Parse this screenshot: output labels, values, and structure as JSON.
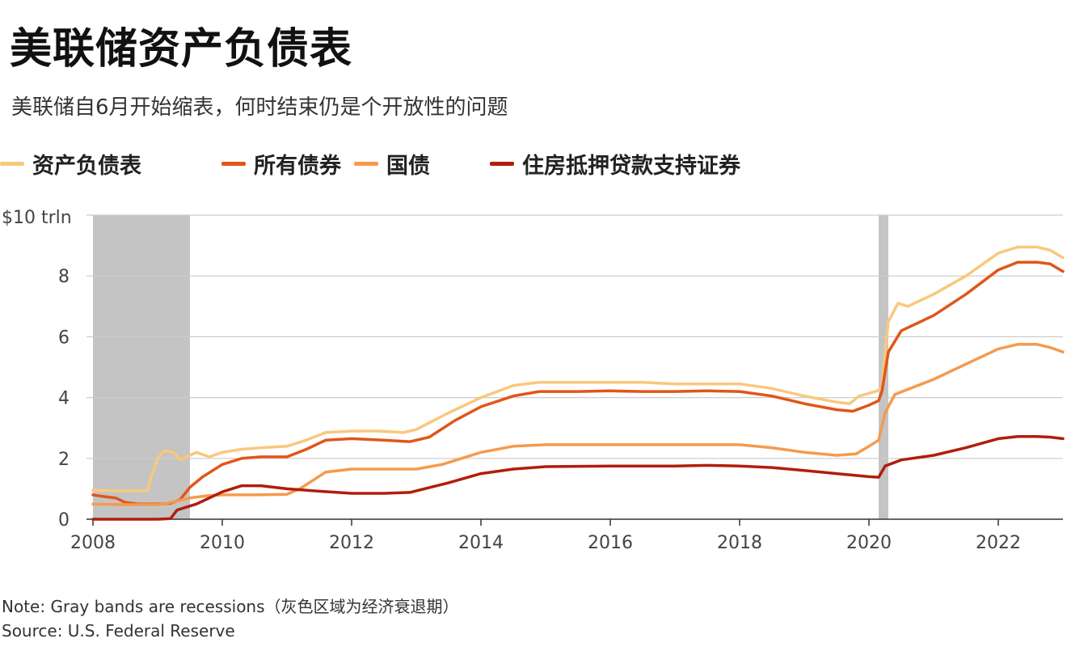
{
  "header": {
    "title": "美联储资产负债表",
    "subtitle": "美联储自6月开始缩表，何时结束仍是个开放性的问题"
  },
  "footer": {
    "note": "Note: Gray bands are recessions（灰色区域为经济衰退期）",
    "source": "Source: U.S. Federal Reserve"
  },
  "colors": {
    "balance_sheet": "#f9c87d",
    "all_securities": "#e0561a",
    "treasuries": "#f59a4e",
    "mbs": "#b01e0b",
    "recession": "#c4c4c4",
    "grid": "#cccccc"
  },
  "chart_data": {
    "type": "line",
    "ylabel_top": "$10 trln",
    "ylim": [
      0,
      10
    ],
    "xlim": [
      2008.0,
      2023.0
    ],
    "y_ticks": [
      "0",
      "2",
      "4",
      "6",
      "8"
    ],
    "x_ticks": [
      "2008",
      "2010",
      "2012",
      "2014",
      "2016",
      "2018",
      "2020",
      "2022"
    ],
    "grid": true,
    "legend_position": "top",
    "recessions": [
      [
        2008.0,
        2009.5
      ],
      [
        2020.15,
        2020.3
      ]
    ],
    "series": [
      {
        "name": "资产负债表",
        "color_key": "balance_sheet",
        "points": [
          [
            2008.0,
            0.95
          ],
          [
            2008.4,
            0.93
          ],
          [
            2008.7,
            0.93
          ],
          [
            2008.85,
            0.95
          ],
          [
            2008.9,
            1.4
          ],
          [
            2009.0,
            2.0
          ],
          [
            2009.1,
            2.25
          ],
          [
            2009.25,
            2.2
          ],
          [
            2009.35,
            1.95
          ],
          [
            2009.5,
            2.1
          ],
          [
            2009.6,
            2.2
          ],
          [
            2009.8,
            2.05
          ],
          [
            2010.0,
            2.2
          ],
          [
            2010.3,
            2.3
          ],
          [
            2010.6,
            2.35
          ],
          [
            2011.0,
            2.4
          ],
          [
            2011.3,
            2.6
          ],
          [
            2011.6,
            2.85
          ],
          [
            2012.0,
            2.9
          ],
          [
            2012.4,
            2.9
          ],
          [
            2012.8,
            2.85
          ],
          [
            2013.0,
            2.95
          ],
          [
            2013.5,
            3.5
          ],
          [
            2014.0,
            4.0
          ],
          [
            2014.5,
            4.4
          ],
          [
            2014.9,
            4.5
          ],
          [
            2015.5,
            4.5
          ],
          [
            2016.0,
            4.5
          ],
          [
            2016.5,
            4.5
          ],
          [
            2017.0,
            4.45
          ],
          [
            2017.5,
            4.45
          ],
          [
            2018.0,
            4.45
          ],
          [
            2018.5,
            4.3
          ],
          [
            2019.0,
            4.05
          ],
          [
            2019.5,
            3.85
          ],
          [
            2019.7,
            3.8
          ],
          [
            2019.85,
            4.05
          ],
          [
            2020.1,
            4.2
          ],
          [
            2020.2,
            4.3
          ],
          [
            2020.25,
            5.5
          ],
          [
            2020.3,
            6.5
          ],
          [
            2020.45,
            7.1
          ],
          [
            2020.6,
            7.0
          ],
          [
            2021.0,
            7.4
          ],
          [
            2021.5,
            8.0
          ],
          [
            2022.0,
            8.75
          ],
          [
            2022.3,
            8.95
          ],
          [
            2022.6,
            8.95
          ],
          [
            2022.8,
            8.85
          ],
          [
            2023.0,
            8.6
          ]
        ]
      },
      {
        "name": "所有债券",
        "color_key": "all_securities",
        "points": [
          [
            2008.0,
            0.8
          ],
          [
            2008.15,
            0.75
          ],
          [
            2008.35,
            0.7
          ],
          [
            2008.5,
            0.55
          ],
          [
            2008.7,
            0.5
          ],
          [
            2009.0,
            0.5
          ],
          [
            2009.2,
            0.52
          ],
          [
            2009.35,
            0.65
          ],
          [
            2009.5,
            1.05
          ],
          [
            2009.7,
            1.4
          ],
          [
            2010.0,
            1.8
          ],
          [
            2010.3,
            2.0
          ],
          [
            2010.6,
            2.05
          ],
          [
            2011.0,
            2.05
          ],
          [
            2011.3,
            2.3
          ],
          [
            2011.6,
            2.6
          ],
          [
            2012.0,
            2.65
          ],
          [
            2012.5,
            2.6
          ],
          [
            2012.9,
            2.55
          ],
          [
            2013.2,
            2.7
          ],
          [
            2013.6,
            3.25
          ],
          [
            2014.0,
            3.7
          ],
          [
            2014.5,
            4.05
          ],
          [
            2014.9,
            4.2
          ],
          [
            2015.5,
            4.2
          ],
          [
            2016.0,
            4.22
          ],
          [
            2016.5,
            4.2
          ],
          [
            2017.0,
            4.2
          ],
          [
            2017.5,
            4.22
          ],
          [
            2018.0,
            4.2
          ],
          [
            2018.5,
            4.05
          ],
          [
            2019.0,
            3.8
          ],
          [
            2019.5,
            3.6
          ],
          [
            2019.75,
            3.55
          ],
          [
            2020.0,
            3.75
          ],
          [
            2020.15,
            3.9
          ],
          [
            2020.2,
            4.2
          ],
          [
            2020.3,
            5.5
          ],
          [
            2020.5,
            6.2
          ],
          [
            2021.0,
            6.7
          ],
          [
            2021.5,
            7.4
          ],
          [
            2022.0,
            8.2
          ],
          [
            2022.3,
            8.45
          ],
          [
            2022.6,
            8.45
          ],
          [
            2022.8,
            8.4
          ],
          [
            2023.0,
            8.15
          ]
        ]
      },
      {
        "name": "国债",
        "color_key": "treasuries",
        "points": [
          [
            2008.0,
            0.5
          ],
          [
            2008.5,
            0.48
          ],
          [
            2009.0,
            0.48
          ],
          [
            2009.2,
            0.55
          ],
          [
            2009.5,
            0.7
          ],
          [
            2009.8,
            0.78
          ],
          [
            2010.0,
            0.8
          ],
          [
            2010.5,
            0.8
          ],
          [
            2011.0,
            0.82
          ],
          [
            2011.2,
            1.0
          ],
          [
            2011.6,
            1.55
          ],
          [
            2012.0,
            1.65
          ],
          [
            2012.5,
            1.65
          ],
          [
            2013.0,
            1.65
          ],
          [
            2013.4,
            1.8
          ],
          [
            2014.0,
            2.2
          ],
          [
            2014.5,
            2.4
          ],
          [
            2015.0,
            2.45
          ],
          [
            2016.0,
            2.45
          ],
          [
            2017.0,
            2.45
          ],
          [
            2018.0,
            2.45
          ],
          [
            2018.5,
            2.35
          ],
          [
            2019.0,
            2.2
          ],
          [
            2019.5,
            2.1
          ],
          [
            2019.8,
            2.15
          ],
          [
            2020.0,
            2.4
          ],
          [
            2020.15,
            2.6
          ],
          [
            2020.25,
            3.5
          ],
          [
            2020.4,
            4.1
          ],
          [
            2021.0,
            4.6
          ],
          [
            2021.5,
            5.1
          ],
          [
            2022.0,
            5.6
          ],
          [
            2022.3,
            5.75
          ],
          [
            2022.6,
            5.75
          ],
          [
            2022.8,
            5.65
          ],
          [
            2023.0,
            5.5
          ]
        ]
      },
      {
        "name": "住房抵押贷款支持证券",
        "color_key": "mbs",
        "points": [
          [
            2008.0,
            0.0
          ],
          [
            2008.5,
            0.0
          ],
          [
            2009.0,
            0.0
          ],
          [
            2009.2,
            0.02
          ],
          [
            2009.3,
            0.3
          ],
          [
            2009.6,
            0.5
          ],
          [
            2010.0,
            0.9
          ],
          [
            2010.3,
            1.1
          ],
          [
            2010.6,
            1.1
          ],
          [
            2011.0,
            1.0
          ],
          [
            2011.5,
            0.92
          ],
          [
            2012.0,
            0.85
          ],
          [
            2012.5,
            0.85
          ],
          [
            2012.9,
            0.88
          ],
          [
            2013.5,
            1.2
          ],
          [
            2014.0,
            1.5
          ],
          [
            2014.5,
            1.65
          ],
          [
            2015.0,
            1.73
          ],
          [
            2016.0,
            1.75
          ],
          [
            2017.0,
            1.75
          ],
          [
            2017.5,
            1.77
          ],
          [
            2018.0,
            1.75
          ],
          [
            2018.5,
            1.7
          ],
          [
            2019.0,
            1.6
          ],
          [
            2019.5,
            1.5
          ],
          [
            2020.0,
            1.4
          ],
          [
            2020.15,
            1.38
          ],
          [
            2020.25,
            1.75
          ],
          [
            2020.5,
            1.95
          ],
          [
            2021.0,
            2.1
          ],
          [
            2021.5,
            2.35
          ],
          [
            2022.0,
            2.65
          ],
          [
            2022.3,
            2.72
          ],
          [
            2022.6,
            2.72
          ],
          [
            2022.8,
            2.7
          ],
          [
            2023.0,
            2.65
          ]
        ]
      }
    ]
  }
}
